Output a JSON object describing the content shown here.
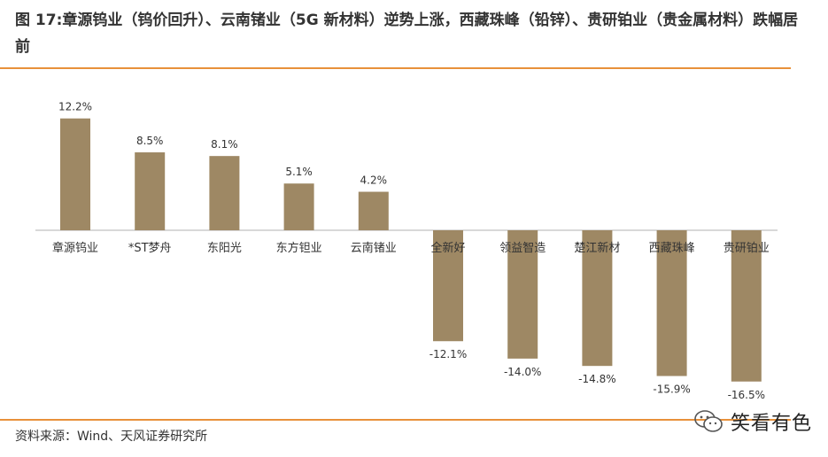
{
  "figure": {
    "title": "图 17:章源钨业（钨价回升）、云南锗业（5G 新材料）逆势上涨，西藏珠峰（铅锌）、贵研铂业（贵金属材料）跌幅居前",
    "source": "资料来源：Wind、天风证券研究所",
    "watermark": "笑看有色"
  },
  "colors": {
    "bar": "#9e8864",
    "rule": "#e8913a",
    "axis": "#b0b0b0"
  },
  "chart_data": {
    "type": "bar",
    "categories": [
      "章源钨业",
      "*ST梦舟",
      "东阳光",
      "东方钽业",
      "云南锗业",
      "全新好",
      "领益智造",
      "楚江新材",
      "西藏珠峰",
      "贵研铂业"
    ],
    "values": [
      12.2,
      8.5,
      8.1,
      5.1,
      4.2,
      -12.1,
      -14.0,
      -14.8,
      -15.9,
      -16.5
    ],
    "value_labels": [
      "12.2%",
      "8.5%",
      "8.1%",
      "5.1%",
      "4.2%",
      "-12.1%",
      "-14.0%",
      "-14.8%",
      "-15.9%",
      "-16.5%"
    ],
    "unit": "%",
    "xlabel": "",
    "ylabel": "",
    "ylim": [
      -18,
      14
    ],
    "grid": false,
    "legend": "none"
  }
}
